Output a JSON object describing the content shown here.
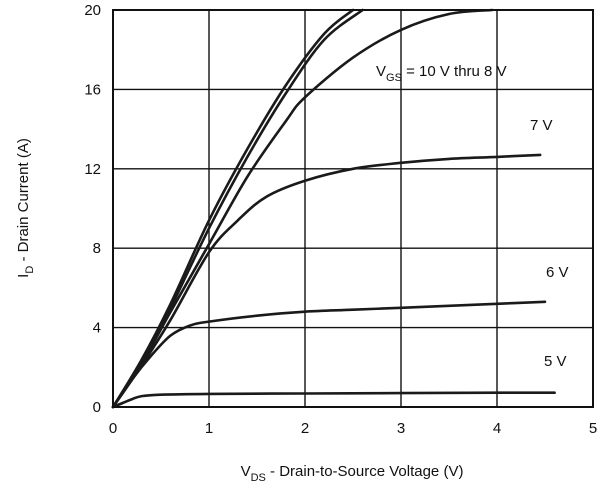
{
  "chart_data": {
    "type": "line",
    "xlabel_main": "V",
    "xlabel_sub": "DS",
    "xlabel_rest": " - Drain-to-Source Voltage (V)",
    "ylabel_main": "I",
    "ylabel_sub": "D",
    "ylabel_rest": " - Drain Current (A)",
    "xlim": [
      0,
      5
    ],
    "ylim": [
      0,
      20
    ],
    "x_ticks": [
      "0",
      "1",
      "2",
      "3",
      "4",
      "5"
    ],
    "y_ticks": [
      "0",
      "4",
      "8",
      "12",
      "16",
      "20"
    ],
    "grid": true,
    "annotations": [
      {
        "main": "V",
        "sub": "GS",
        "rest": " = 10 V thru 8 V"
      },
      {
        "main": "7 V",
        "sub": "",
        "rest": ""
      },
      {
        "main": "6 V",
        "sub": "",
        "rest": ""
      },
      {
        "main": "5 V",
        "sub": "",
        "rest": ""
      }
    ],
    "series": [
      {
        "points": [
          [
            0,
            0
          ],
          [
            0.3,
            2.4
          ],
          [
            0.6,
            5.2
          ],
          [
            1.0,
            9.4
          ],
          [
            1.4,
            13.0
          ],
          [
            1.8,
            16.2
          ],
          [
            2.2,
            18.8
          ],
          [
            2.5,
            20.0
          ]
        ]
      },
      {
        "points": [
          [
            0,
            0
          ],
          [
            0.3,
            2.3
          ],
          [
            0.6,
            5.0
          ],
          [
            1.0,
            9.0
          ],
          [
            1.4,
            12.6
          ],
          [
            1.8,
            15.8
          ],
          [
            2.2,
            18.5
          ],
          [
            2.6,
            20.0
          ]
        ]
      },
      {
        "points": [
          [
            0,
            0
          ],
          [
            0.3,
            2.2
          ],
          [
            0.6,
            4.8
          ],
          [
            1.0,
            8.2
          ],
          [
            1.4,
            11.6
          ],
          [
            1.8,
            14.4
          ],
          [
            2.0,
            15.6
          ],
          [
            2.5,
            17.6
          ],
          [
            3.0,
            19.0
          ],
          [
            3.5,
            19.8
          ],
          [
            3.95,
            20.0
          ]
        ]
      },
      {
        "points": [
          [
            0,
            0
          ],
          [
            0.3,
            2.1
          ],
          [
            0.6,
            4.4
          ],
          [
            1.0,
            7.8
          ],
          [
            1.3,
            9.4
          ],
          [
            1.6,
            10.6
          ],
          [
            2.0,
            11.4
          ],
          [
            2.5,
            12.0
          ],
          [
            3.0,
            12.3
          ],
          [
            3.5,
            12.5
          ],
          [
            4.0,
            12.6
          ],
          [
            4.45,
            12.7
          ]
        ]
      },
      {
        "points": [
          [
            0,
            0
          ],
          [
            0.2,
            1.4
          ],
          [
            0.4,
            2.6
          ],
          [
            0.6,
            3.6
          ],
          [
            0.8,
            4.1
          ],
          [
            1.0,
            4.3
          ],
          [
            1.5,
            4.6
          ],
          [
            2.0,
            4.8
          ],
          [
            2.5,
            4.9
          ],
          [
            3.0,
            5.0
          ],
          [
            3.5,
            5.1
          ],
          [
            4.0,
            5.2
          ],
          [
            4.5,
            5.3
          ]
        ]
      },
      {
        "points": [
          [
            0,
            0
          ],
          [
            0.1,
            0.2
          ],
          [
            0.2,
            0.4
          ],
          [
            0.3,
            0.55
          ],
          [
            0.5,
            0.62
          ],
          [
            1.0,
            0.66
          ],
          [
            2.0,
            0.68
          ],
          [
            3.0,
            0.7
          ],
          [
            4.0,
            0.72
          ],
          [
            4.6,
            0.72
          ]
        ]
      }
    ]
  }
}
